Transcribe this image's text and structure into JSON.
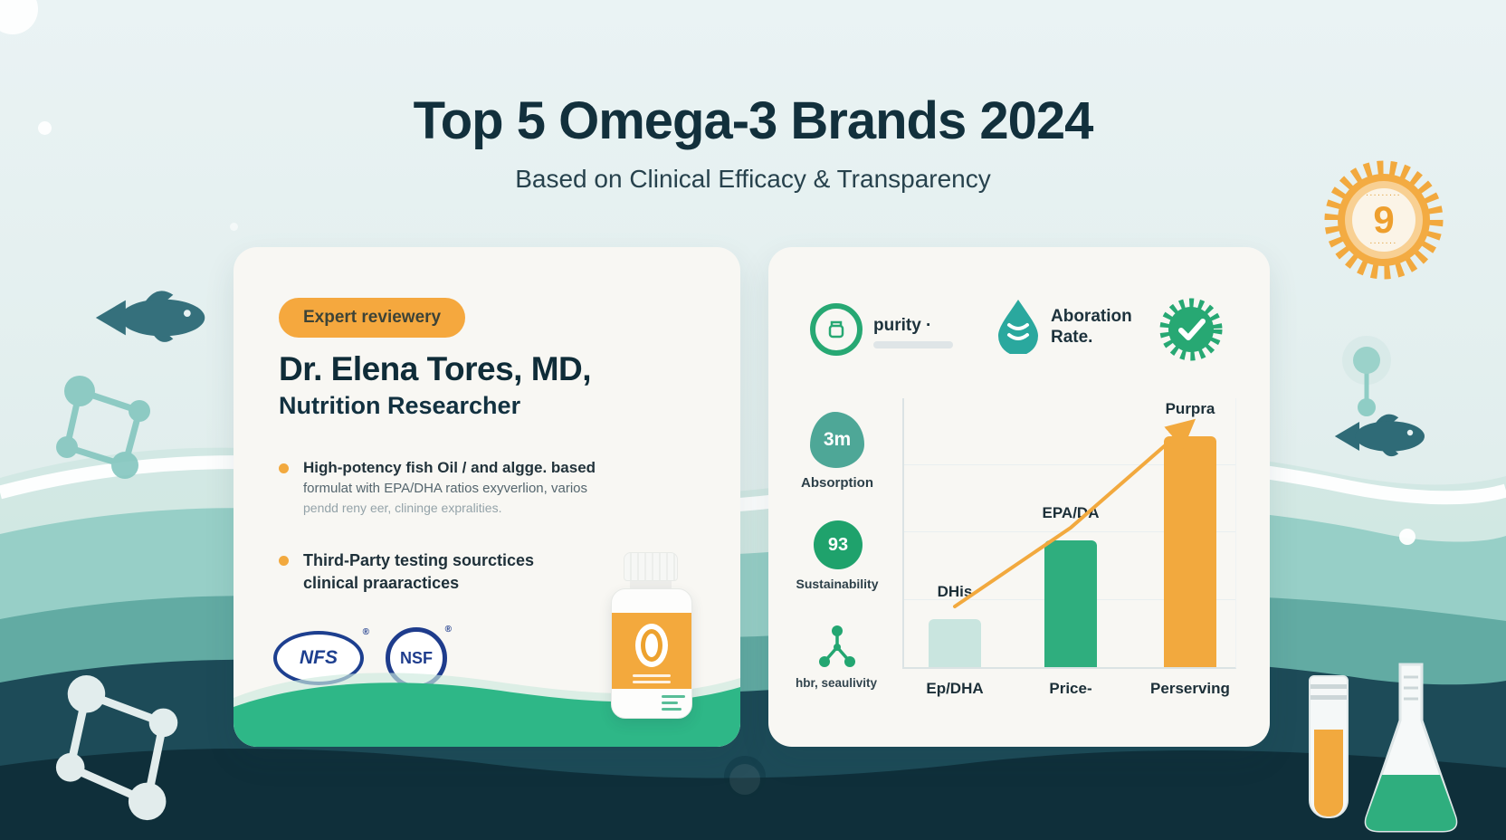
{
  "header": {
    "title": "Top 5 Omega-3 Brands 2024",
    "subtitle": "Based on Clinical Efficacy & Transparency"
  },
  "award_badge": {
    "number": "9",
    "arc_top": "·········",
    "arc_bottom": "·······"
  },
  "expert_card": {
    "badge_label": "Expert reviewery",
    "name": "Dr. Elena Tores, MD,",
    "role": "Nutrition Researcher",
    "bullet1_line1": "High-potency fish Oil / and algge. based",
    "bullet1_line2": "formulat with EPA/DHA ratios exyverlion, varios",
    "bullet1_line3": "pendd reny eer, clininge expralities.",
    "bullet2_line1": "Third-Party testing sourctices",
    "bullet2_line2": "clinical praaractices",
    "cert1": "NFS",
    "cert2": "NSF",
    "registered_mark": "®"
  },
  "metrics_card": {
    "icon1_label": "purity ·",
    "icon2_label_line1": "Aboration",
    "icon2_label_line2": "Rate.",
    "metric1_value": "3m",
    "metric1_label": "Absorption",
    "metric2_value": "93",
    "metric2_label": "Sustainability",
    "metric3_label": "hbr, seaulivity"
  },
  "chart_data": {
    "type": "bar",
    "title": "",
    "xlabel": "",
    "ylabel": "",
    "categories": [
      "Ep/DHA",
      "Price-",
      "Perserving"
    ],
    "values": [
      18,
      47,
      86
    ],
    "ylim": [
      0,
      100
    ],
    "bar_labels": [
      "DHis",
      "EPA/DA",
      "Purpra"
    ],
    "bar_colors": [
      "#c9e5df",
      "#2fae7e",
      "#f2a93e"
    ],
    "grid": true,
    "legend": false,
    "trendline": {
      "color": "#f2a93e",
      "style": "arrow",
      "follows": "bar-tops"
    }
  },
  "colors": {
    "accent_orange": "#f2a93e",
    "accent_green": "#27a873",
    "accent_teal": "#79c2ba",
    "dark_navy": "#12303c",
    "cert_blue": "#1d3f8f"
  }
}
